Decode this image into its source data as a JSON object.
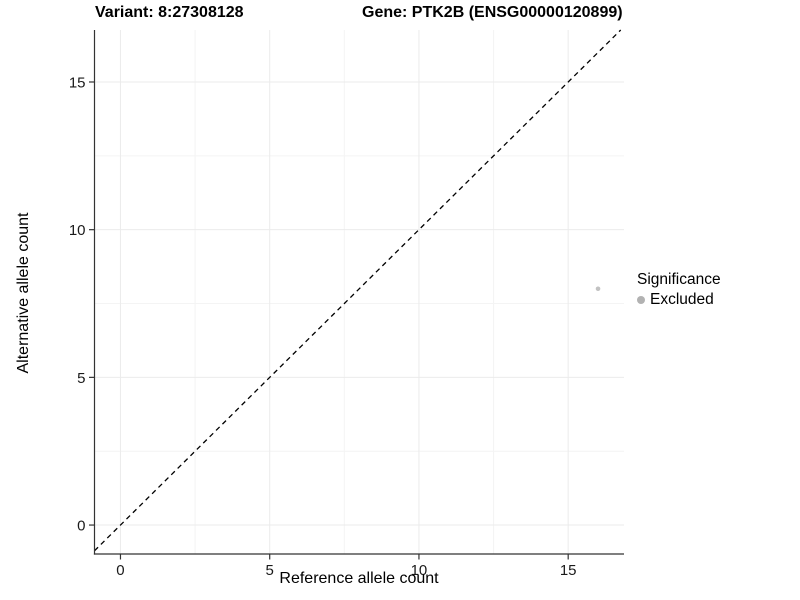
{
  "titles": {
    "left": "Variant: 8:27308128",
    "right": "Gene: PTK2B (ENSG00000120899)"
  },
  "chart_data": {
    "type": "scatter",
    "title_left": "Variant: 8:27308128",
    "title_right": "Gene: PTK2B (ENSG00000120899)",
    "xlabel": "Reference allele count",
    "ylabel": "Alternative allele count",
    "xlim": [
      -0.87,
      16.87
    ],
    "ylim": [
      -0.98,
      16.76
    ],
    "x_ticks": [
      0,
      5,
      10,
      15
    ],
    "y_ticks": [
      0,
      5,
      10,
      15
    ],
    "x_minor_ticks": [
      2.5,
      7.5,
      12.5
    ],
    "y_minor_ticks": [
      2.5,
      7.5,
      12.5
    ],
    "grid": true,
    "reference_line": {
      "kind": "identity",
      "style": "dashed",
      "color": "#000000"
    },
    "series": [
      {
        "name": "Excluded",
        "color": "#c2c2c2",
        "point_radius": 2.3,
        "points": [
          {
            "x": 16,
            "y": 8
          }
        ]
      }
    ],
    "legend": {
      "title": "Significance",
      "position": "right",
      "entries": [
        {
          "label": "Excluded",
          "color": "#b2b2b2"
        }
      ]
    },
    "style": {
      "grid_major_color": "#ebebeb",
      "grid_minor_color": "#f4f4f4",
      "axis_line_color": "#333333",
      "tick_label_color": "#1a1a1a",
      "tick_label_size": 15
    }
  }
}
